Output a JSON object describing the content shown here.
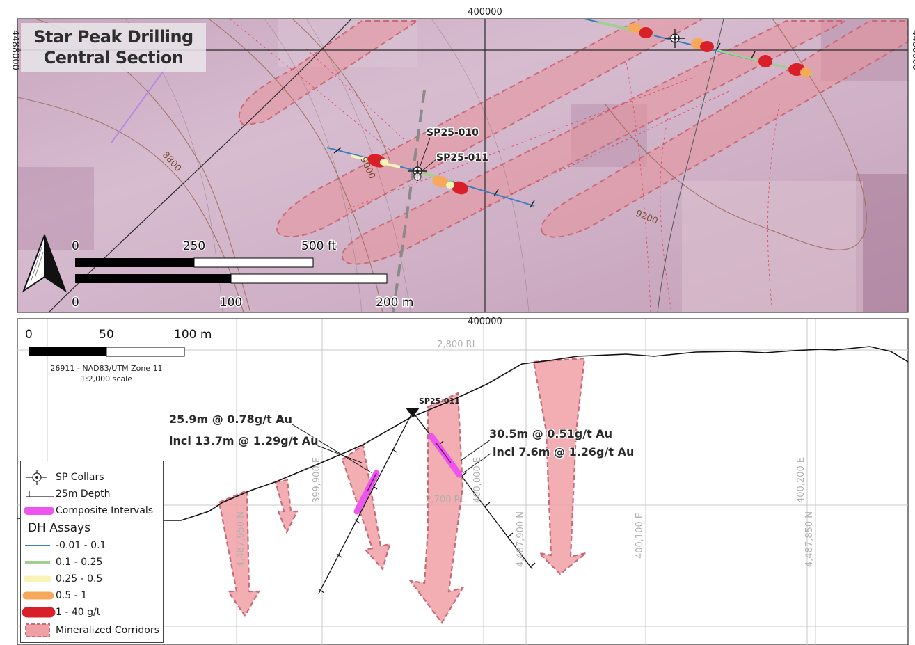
{
  "title": {
    "line1": "Star Peak Drilling",
    "line2": "Central Section"
  },
  "plan_view": {
    "easting_label": "400000",
    "northing_label": "4488000",
    "northing_label_right": "4488000",
    "contours": [
      "8800",
      "9000",
      "9200"
    ],
    "drillholes": [
      "SP25-010",
      "SP25-011"
    ],
    "scale_ft": {
      "t0": "0",
      "t1": "250",
      "t2": "500 ft"
    },
    "scale_m": {
      "t0": "0",
      "t1": "100",
      "t2": "200 m"
    }
  },
  "section_view": {
    "easting_label": "400000",
    "scale": {
      "t0": "0",
      "t1": "50",
      "t2": "100 m"
    },
    "crs_line1": "26911 - NAD83/UTM Zone 11",
    "crs_line2": "1:2,000 scale",
    "rl_labels": [
      "2,800 RL",
      "2,700 RL"
    ],
    "grid_labels": [
      "4,487,950 N",
      "399,900 E",
      "400,000 E",
      "4,487,900 N",
      "400,100 E",
      "400,200 E",
      "4,487,850 N"
    ],
    "hole_label": "SP25-011",
    "intercept_left": {
      "line1": "25.9m @ 0.78g/t Au",
      "line2": "incl 13.7m @ 1.29g/t Au"
    },
    "intercept_right": {
      "line1": "30.5m @ 0.51g/t Au",
      "line2": "incl 7.6m @ 1.26g/t Au"
    }
  },
  "legend": {
    "items": [
      {
        "label": "SP Collars"
      },
      {
        "label": "25m Depth"
      },
      {
        "label": "Composite Intervals",
        "color": "#ee55ee"
      },
      {
        "label": "DH Assays",
        "is_heading": true
      },
      {
        "label": "-0.01 - 0.1",
        "color": "#3b7fc0"
      },
      {
        "label": "0.1 - 0.25",
        "color": "#9fd08f"
      },
      {
        "label": "0.25 - 0.5",
        "color": "#f9f3b8"
      },
      {
        "label": "0.5 - 1",
        "color": "#f6a85b"
      },
      {
        "label": "1 - 40 g/t",
        "color": "#d9202a"
      },
      {
        "label": "Mineralized Corridors",
        "color": "#f0a0a4"
      }
    ]
  }
}
